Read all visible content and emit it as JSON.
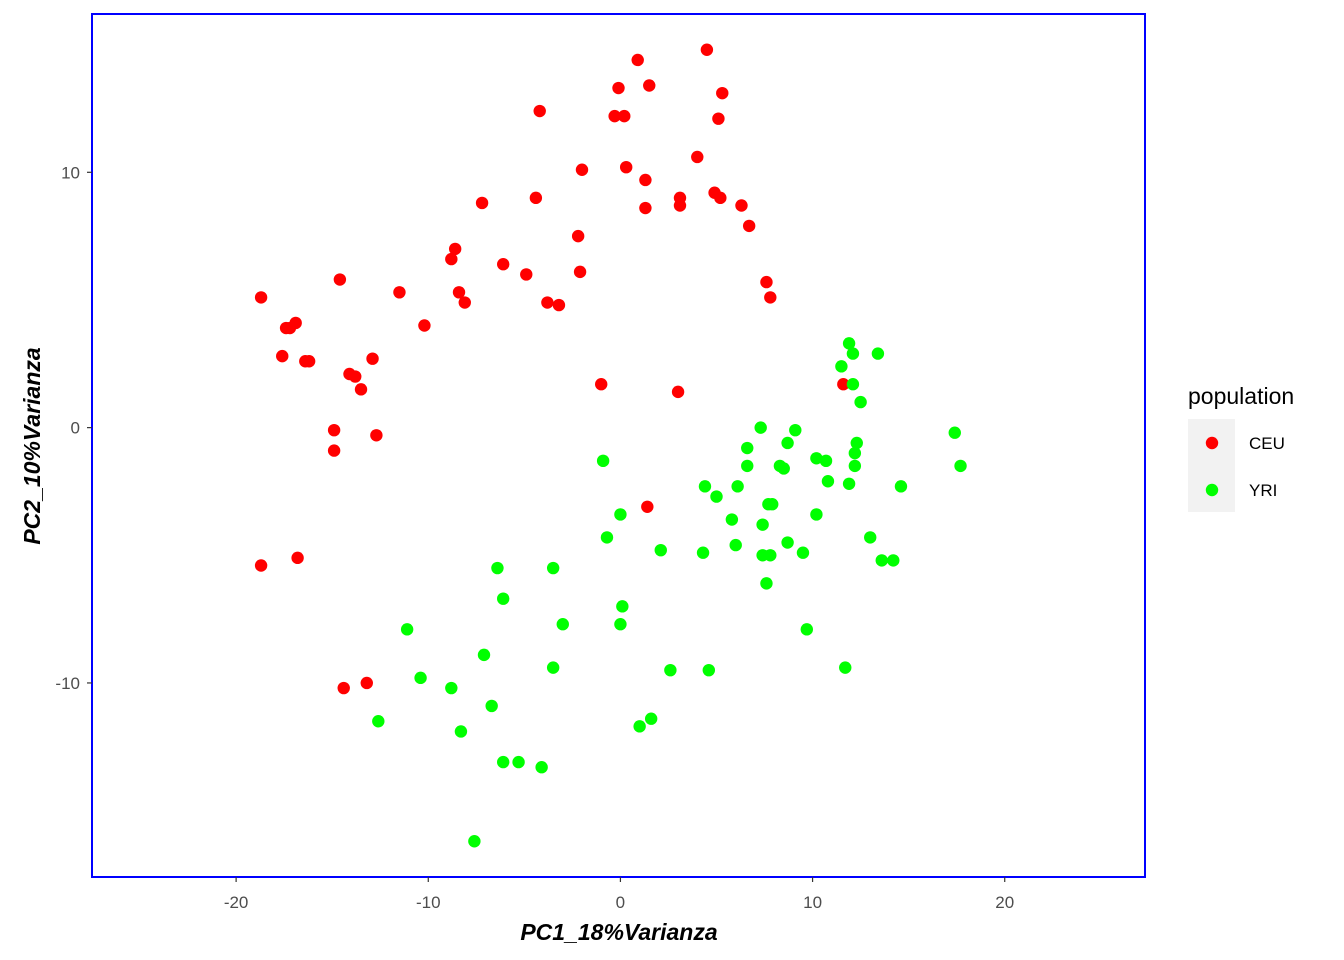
{
  "chart_data": {
    "type": "scatter",
    "title": "",
    "xlabel": "PC1_18%Varianza",
    "ylabel": "PC2_10%Varianza",
    "xlim": [
      -27.5,
      27.3
    ],
    "ylim": [
      -17.6,
      16.2
    ],
    "xticks": [
      -20,
      -10,
      0,
      10,
      20
    ],
    "yticks": [
      -10,
      0,
      10
    ],
    "xtick_labels": [
      "-20",
      "-10",
      "0",
      "10",
      "20"
    ],
    "ytick_labels": [
      "-10",
      "0",
      "10"
    ],
    "grid": true,
    "panel_border_color": "#0000ff",
    "legend": {
      "title": "population",
      "placement": "right",
      "entries": [
        {
          "label": "CEU",
          "color": "#ff0000"
        },
        {
          "label": "YRI",
          "color": "#00ff00"
        }
      ]
    },
    "series": [
      {
        "name": "CEU",
        "color": "#ff0000",
        "points": [
          [
            4.5,
            14.8
          ],
          [
            0.9,
            14.4
          ],
          [
            -0.1,
            13.3
          ],
          [
            1.5,
            13.4
          ],
          [
            5.3,
            13.1
          ],
          [
            -4.2,
            12.4
          ],
          [
            -0.3,
            12.2
          ],
          [
            0.2,
            12.2
          ],
          [
            5.1,
            12.1
          ],
          [
            4.0,
            10.6
          ],
          [
            -2.0,
            10.1
          ],
          [
            0.3,
            10.2
          ],
          [
            1.3,
            9.7
          ],
          [
            3.1,
            9.0
          ],
          [
            4.9,
            9.2
          ],
          [
            5.2,
            9.0
          ],
          [
            -4.4,
            9.0
          ],
          [
            -7.2,
            8.8
          ],
          [
            1.3,
            8.6
          ],
          [
            3.1,
            8.7
          ],
          [
            6.3,
            8.7
          ],
          [
            6.7,
            7.9
          ],
          [
            -2.2,
            7.5
          ],
          [
            -8.6,
            7.0
          ],
          [
            -8.8,
            6.6
          ],
          [
            -6.1,
            6.4
          ],
          [
            -2.1,
            6.1
          ],
          [
            -4.9,
            6.0
          ],
          [
            -14.6,
            5.8
          ],
          [
            -8.4,
            5.3
          ],
          [
            -8.1,
            4.9
          ],
          [
            -11.5,
            5.3
          ],
          [
            -3.8,
            4.9
          ],
          [
            -3.2,
            4.8
          ],
          [
            7.6,
            5.7
          ],
          [
            7.8,
            5.1
          ],
          [
            -18.7,
            5.1
          ],
          [
            -17.4,
            3.9
          ],
          [
            -17.2,
            3.9
          ],
          [
            -16.9,
            4.1
          ],
          [
            -10.2,
            4.0
          ],
          [
            -17.6,
            2.8
          ],
          [
            -16.2,
            2.6
          ],
          [
            -16.4,
            2.6
          ],
          [
            -12.9,
            2.7
          ],
          [
            -14.1,
            2.1
          ],
          [
            -13.8,
            2.0
          ],
          [
            -13.5,
            1.5
          ],
          [
            -1.0,
            1.7
          ],
          [
            3.0,
            1.4
          ],
          [
            11.6,
            1.7
          ],
          [
            -14.9,
            -0.1
          ],
          [
            -12.7,
            -0.3
          ],
          [
            -14.9,
            -0.9
          ],
          [
            1.4,
            -3.1
          ],
          [
            -18.7,
            -5.4
          ],
          [
            -16.8,
            -5.1
          ],
          [
            -14.4,
            -10.2
          ],
          [
            -13.2,
            -10.0
          ]
        ]
      },
      {
        "name": "YRI",
        "color": "#00ff00",
        "points": [
          [
            11.9,
            3.3
          ],
          [
            12.1,
            2.9
          ],
          [
            13.4,
            2.9
          ],
          [
            11.5,
            2.4
          ],
          [
            12.1,
            1.7
          ],
          [
            12.5,
            1.0
          ],
          [
            17.4,
            -0.2
          ],
          [
            7.3,
            0.0
          ],
          [
            9.1,
            -0.1
          ],
          [
            8.7,
            -0.6
          ],
          [
            12.3,
            -0.6
          ],
          [
            6.6,
            -0.8
          ],
          [
            12.2,
            -1.0
          ],
          [
            10.2,
            -1.2
          ],
          [
            10.7,
            -1.3
          ],
          [
            8.3,
            -1.5
          ],
          [
            8.5,
            -1.6
          ],
          [
            17.7,
            -1.5
          ],
          [
            6.6,
            -1.5
          ],
          [
            12.2,
            -1.5
          ],
          [
            -0.9,
            -1.3
          ],
          [
            4.4,
            -2.3
          ],
          [
            5.0,
            -2.7
          ],
          [
            6.1,
            -2.3
          ],
          [
            10.8,
            -2.1
          ],
          [
            11.9,
            -2.2
          ],
          [
            14.6,
            -2.3
          ],
          [
            7.7,
            -3.0
          ],
          [
            7.9,
            -3.0
          ],
          [
            0.0,
            -3.4
          ],
          [
            10.2,
            -3.4
          ],
          [
            5.8,
            -3.6
          ],
          [
            7.4,
            -3.8
          ],
          [
            -0.7,
            -4.3
          ],
          [
            13.0,
            -4.3
          ],
          [
            6.0,
            -4.6
          ],
          [
            8.7,
            -4.5
          ],
          [
            2.1,
            -4.8
          ],
          [
            4.3,
            -4.9
          ],
          [
            7.4,
            -5.0
          ],
          [
            7.8,
            -5.0
          ],
          [
            9.5,
            -4.9
          ],
          [
            13.6,
            -5.2
          ],
          [
            14.2,
            -5.2
          ],
          [
            -6.4,
            -5.5
          ],
          [
            -3.5,
            -5.5
          ],
          [
            7.6,
            -6.1
          ],
          [
            -6.1,
            -6.7
          ],
          [
            0.1,
            -7.0
          ],
          [
            -3.0,
            -7.7
          ],
          [
            0.0,
            -7.7
          ],
          [
            9.7,
            -7.9
          ],
          [
            -11.1,
            -7.9
          ],
          [
            -7.1,
            -8.9
          ],
          [
            -3.5,
            -9.4
          ],
          [
            2.6,
            -9.5
          ],
          [
            4.6,
            -9.5
          ],
          [
            11.7,
            -9.4
          ],
          [
            -10.4,
            -9.8
          ],
          [
            -8.8,
            -10.2
          ],
          [
            -6.7,
            -10.9
          ],
          [
            1.6,
            -11.4
          ],
          [
            1.0,
            -11.7
          ],
          [
            -12.6,
            -11.5
          ],
          [
            -8.3,
            -11.9
          ],
          [
            -6.1,
            -13.1
          ],
          [
            -5.3,
            -13.1
          ],
          [
            -4.1,
            -13.3
          ],
          [
            -7.6,
            -16.2
          ]
        ]
      }
    ]
  }
}
